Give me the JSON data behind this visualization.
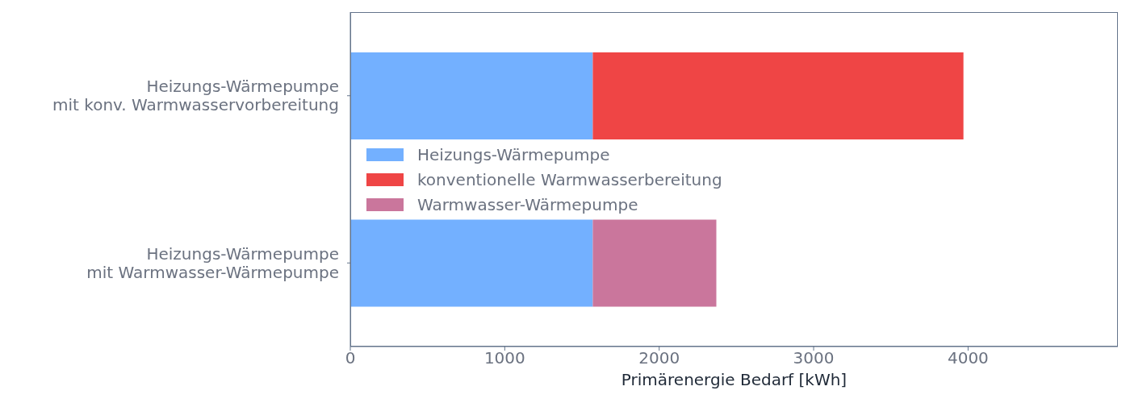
{
  "chart_data": {
    "type": "bar",
    "orientation": "horizontal",
    "stacked": true,
    "xlabel": "Primärenergie Bedarf [kWh]",
    "categories": [
      "Heizungs-Wärmepumpe\nmit konv. Warmwasservorbereitung",
      "Heizungs-Wärmepumpe\nmit Warmwasser-Wärmepumpe"
    ],
    "series": [
      {
        "name": "Heizungs-Wärmepumpe",
        "color": "#73b0ff",
        "values": [
          1570,
          1570
        ]
      },
      {
        "name": "konventionelle Warmwasserbereitung",
        "color": "#ef4545",
        "values": [
          2400,
          null
        ]
      },
      {
        "name": "Warmwasser-Wärmepumpe",
        "color": "#ca769c",
        "values": [
          null,
          800
        ]
      }
    ],
    "xlim": [
      0,
      4970
    ],
    "xticks": [
      0,
      1000,
      2000,
      3000,
      4000
    ],
    "legend": "left",
    "grid": false
  }
}
